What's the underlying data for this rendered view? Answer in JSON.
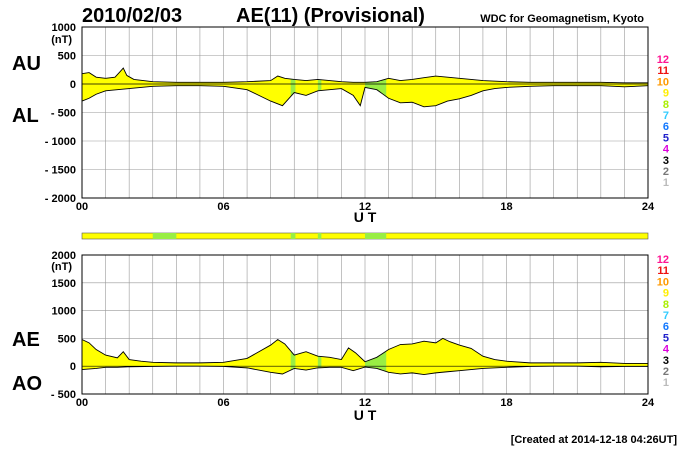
{
  "header": {
    "date": "2010/02/03",
    "title": "AE(11) (Provisional)",
    "source": "WDC for Geomagnetism, Kyoto"
  },
  "footer": {
    "created": "[Created at 2014-12-18 04:26UT]"
  },
  "colors": {
    "fill": "#ffff00",
    "quiet_band": "#99ee44",
    "grid": "#999999"
  },
  "station_scale": [
    {
      "label": "12",
      "color": "#ff1493"
    },
    {
      "label": "11",
      "color": "#ee1111"
    },
    {
      "label": "10",
      "color": "#ff9900"
    },
    {
      "label": "9",
      "color": "#ffee00"
    },
    {
      "label": "8",
      "color": "#aaee00"
    },
    {
      "label": "7",
      "color": "#33ccff"
    },
    {
      "label": "6",
      "color": "#1177ff"
    },
    {
      "label": "5",
      "color": "#2222cc"
    },
    {
      "label": "4",
      "color": "#dd00dd"
    },
    {
      "label": "3",
      "color": "#000000"
    },
    {
      "label": "2",
      "color": "#777777"
    },
    {
      "label": "1",
      "color": "#bbbbbb"
    }
  ],
  "chart_data": [
    {
      "type": "area",
      "upper_label": "AU",
      "lower_label": "AL",
      "unit": "(nT)",
      "xlabel": "U T",
      "xlim": [
        0,
        24
      ],
      "ylim": [
        -2000,
        1000
      ],
      "yticks": [
        1000,
        500,
        0,
        -500,
        -1000,
        -1500,
        -2000
      ],
      "ytick_labels": [
        "1000",
        "500",
        "0",
        "- 500",
        "- 1000",
        "- 1500",
        "- 2000"
      ],
      "xticks": [
        0,
        6,
        12,
        18,
        24
      ],
      "xtick_labels": [
        "00",
        "06",
        "12",
        "18",
        "24"
      ],
      "grid": true,
      "quiet_bands": [
        [
          8.85,
          9.05
        ],
        [
          10.0,
          10.15
        ],
        [
          12.0,
          12.9
        ]
      ],
      "series": [
        {
          "name": "AU",
          "x": [
            0,
            0.3,
            0.6,
            1.0,
            1.4,
            1.6,
            1.75,
            1.9,
            2.2,
            2.6,
            3,
            4,
            5,
            6,
            7,
            8,
            8.3,
            8.6,
            9,
            9.5,
            10,
            10.5,
            11,
            11.5,
            12,
            12.5,
            13,
            13.5,
            14,
            14.5,
            15,
            15.5,
            16,
            16.5,
            17,
            18,
            19,
            20,
            21,
            22,
            23,
            24
          ],
          "y": [
            180,
            200,
            120,
            100,
            120,
            210,
            280,
            150,
            80,
            60,
            40,
            30,
            30,
            30,
            40,
            60,
            140,
            100,
            80,
            60,
            80,
            60,
            40,
            30,
            30,
            40,
            100,
            60,
            80,
            110,
            140,
            120,
            100,
            80,
            60,
            40,
            30,
            30,
            30,
            30,
            20,
            20
          ]
        },
        {
          "name": "AL",
          "x": [
            0,
            0.3,
            0.6,
            1.0,
            1.5,
            2,
            2.5,
            3,
            4,
            5,
            6,
            7,
            7.5,
            8,
            8.5,
            9,
            9.5,
            10,
            10.5,
            11,
            11.5,
            11.8,
            12,
            12.5,
            13,
            13.5,
            14,
            14.5,
            15,
            15.5,
            16,
            16.5,
            17,
            17.5,
            18,
            19,
            20,
            21,
            22,
            23,
            24
          ],
          "y": [
            -300,
            -250,
            -180,
            -120,
            -100,
            -80,
            -60,
            -40,
            -30,
            -30,
            -40,
            -100,
            -200,
            -300,
            -380,
            -150,
            -200,
            -120,
            -100,
            -80,
            -200,
            -380,
            -60,
            -100,
            -250,
            -330,
            -320,
            -400,
            -380,
            -300,
            -260,
            -200,
            -120,
            -80,
            -60,
            -40,
            -30,
            -30,
            -30,
            -50,
            -30
          ]
        }
      ]
    },
    {
      "type": "area",
      "upper_label": "AE",
      "lower_label": "AO",
      "unit": "(nT)",
      "xlabel": "U T",
      "xlim": [
        0,
        24
      ],
      "ylim": [
        -500,
        2000
      ],
      "yticks": [
        2000,
        1500,
        1000,
        500,
        0,
        -500
      ],
      "ytick_labels": [
        "2000",
        "1500",
        "1000",
        "500",
        "0",
        "- 500"
      ],
      "xticks": [
        0,
        6,
        12,
        18,
        24
      ],
      "xtick_labels": [
        "00",
        "06",
        "12",
        "18",
        "24"
      ],
      "grid": true,
      "quiet_bands": [
        [
          8.85,
          9.05
        ],
        [
          10.0,
          10.15
        ],
        [
          12.0,
          12.9
        ]
      ],
      "series": [
        {
          "name": "AE",
          "x": [
            0,
            0.3,
            0.6,
            1.0,
            1.5,
            1.75,
            2,
            2.5,
            3,
            4,
            5,
            6,
            7,
            7.5,
            8,
            8.3,
            8.6,
            9,
            9.5,
            10,
            10.5,
            11,
            11.3,
            11.6,
            12,
            12.5,
            13,
            13.5,
            14,
            14.5,
            15,
            15.3,
            15.6,
            16,
            16.5,
            17,
            17.5,
            18,
            19,
            20,
            21,
            22,
            23,
            24
          ],
          "y": [
            480,
            420,
            300,
            200,
            150,
            260,
            120,
            90,
            70,
            60,
            60,
            70,
            140,
            260,
            380,
            480,
            400,
            200,
            260,
            180,
            160,
            120,
            330,
            240,
            80,
            160,
            300,
            390,
            400,
            450,
            420,
            500,
            440,
            380,
            320,
            180,
            120,
            90,
            60,
            60,
            60,
            70,
            50,
            50
          ]
        },
        {
          "name": "AO",
          "x": [
            0,
            0.6,
            1.0,
            1.5,
            2,
            3,
            4,
            5,
            6,
            7,
            8,
            8.5,
            9,
            9.5,
            10,
            10.5,
            11,
            11.5,
            12,
            12.5,
            13,
            13.5,
            14,
            14.5,
            15,
            15.5,
            16,
            16.5,
            17,
            18,
            19,
            20,
            21,
            22,
            23,
            24
          ],
          "y": [
            -60,
            -40,
            -20,
            -20,
            -10,
            -5,
            0,
            0,
            -5,
            -30,
            -110,
            -140,
            -40,
            -70,
            -30,
            -20,
            -20,
            -80,
            -15,
            -40,
            -110,
            -140,
            -120,
            -150,
            -120,
            -100,
            -80,
            -60,
            -40,
            -20,
            -5,
            0,
            0,
            -10,
            -5,
            -5
          ]
        }
      ]
    }
  ]
}
